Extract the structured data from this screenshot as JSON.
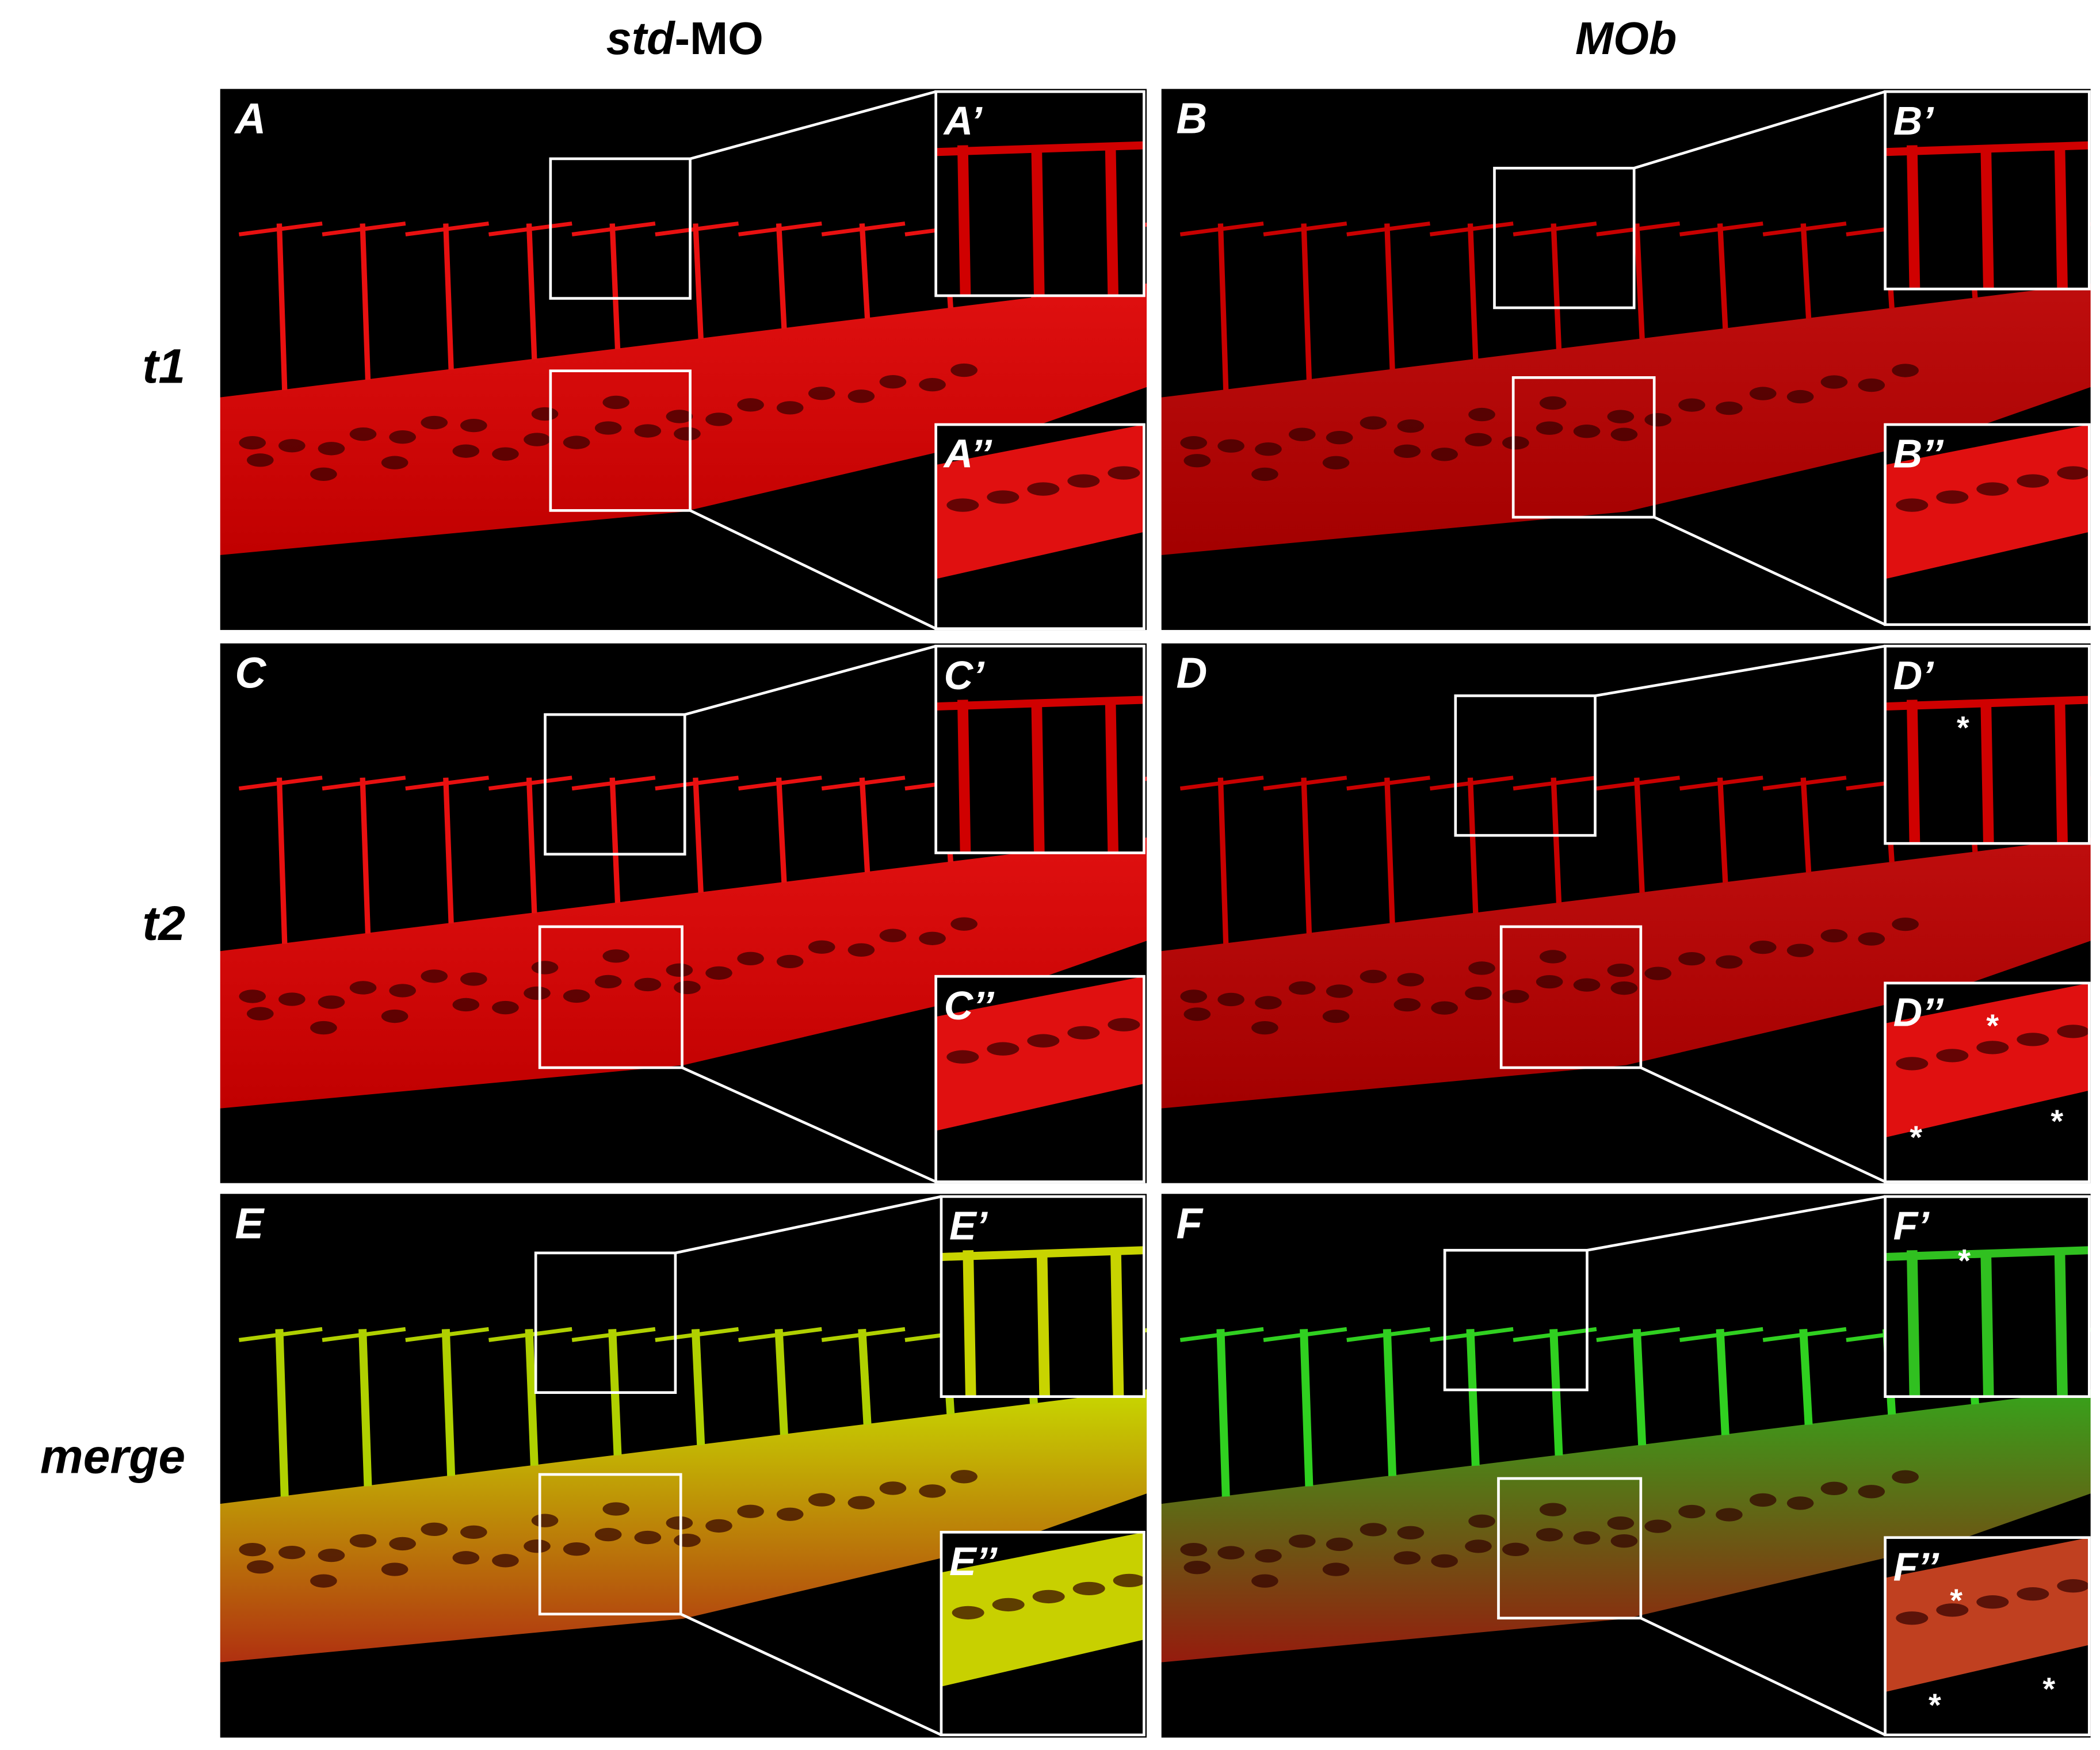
{
  "header": {
    "columns": [
      {
        "italic": "std",
        "plain": "-MO"
      },
      {
        "italic": "MOb"
      }
    ]
  },
  "rows": [
    "t1",
    "t2",
    "merge"
  ],
  "panels": [
    {
      "label": "A",
      "insets": [
        {
          "label": "A’"
        },
        {
          "label": "A’’"
        }
      ]
    },
    {
      "label": "B",
      "insets": [
        {
          "label": "B’"
        },
        {
          "label": "B’’"
        }
      ]
    },
    {
      "label": "C",
      "insets": [
        {
          "label": "C’"
        },
        {
          "label": "C’’"
        }
      ]
    },
    {
      "label": "D",
      "insets": [
        {
          "label": "D’",
          "marks": [
            "*"
          ]
        },
        {
          "label": "D’’",
          "marks": [
            "*",
            "*",
            "*"
          ]
        }
      ]
    },
    {
      "label": "E",
      "insets": [
        {
          "label": "E’"
        },
        {
          "label": "E’’"
        }
      ]
    },
    {
      "label": "F",
      "insets": [
        {
          "label": "F’",
          "marks": [
            "*"
          ]
        },
        {
          "label": "F’’",
          "marks": [
            "*",
            "*",
            "*"
          ]
        }
      ]
    }
  ]
}
